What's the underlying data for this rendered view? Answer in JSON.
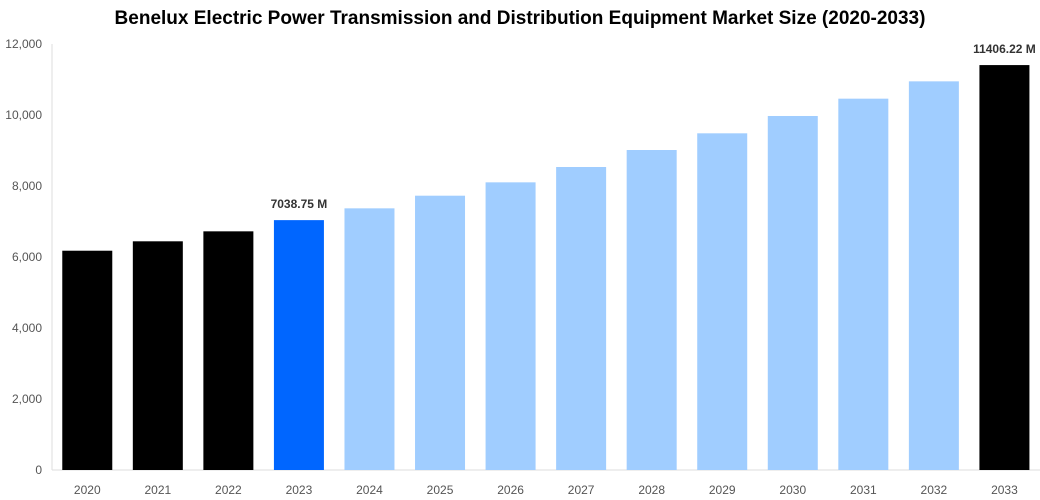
{
  "chart_data": {
    "type": "bar",
    "title": "Benelux Electric Power Transmission and Distribution Equipment Market Size (2020-2033)",
    "xlabel": "",
    "ylabel": "",
    "ylim": [
      0,
      12000
    ],
    "yticks": [
      "0",
      "2,000",
      "4,000",
      "6,000",
      "8,000",
      "10,000",
      "12,000"
    ],
    "grid": false,
    "categories": [
      "2020",
      "2021",
      "2022",
      "2023",
      "2024",
      "2025",
      "2026",
      "2027",
      "2028",
      "2029",
      "2030",
      "2031",
      "2032",
      "2033"
    ],
    "values": [
      6177,
      6442,
      6723,
      7038.75,
      7371,
      7727,
      8103,
      8535,
      9014,
      9484,
      9972,
      10460,
      10948,
      11406.22
    ],
    "colors": [
      "#000000",
      "#000000",
      "#000000",
      "#0066ff",
      "#a0cdff",
      "#a0cdff",
      "#a0cdff",
      "#a0cdff",
      "#a0cdff",
      "#a0cdff",
      "#a0cdff",
      "#a0cdff",
      "#a0cdff",
      "#000000"
    ],
    "data_labels": {
      "2023": "7038.75 M",
      "2033": "11406.22 M"
    }
  }
}
